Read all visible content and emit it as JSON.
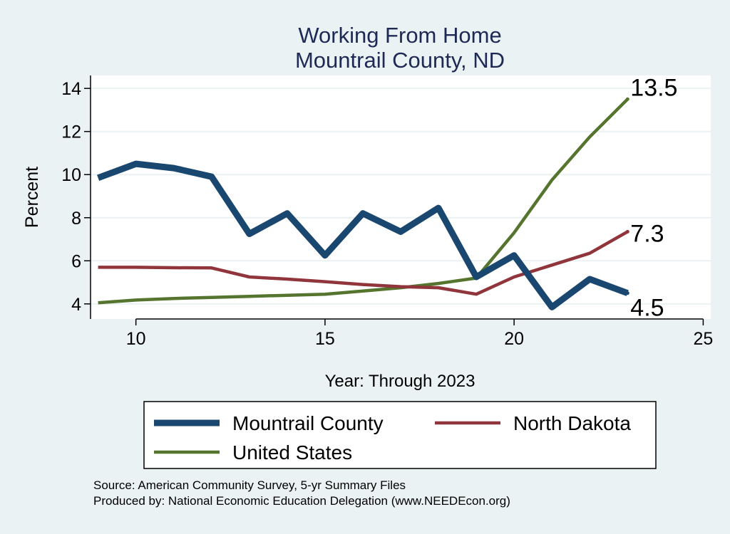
{
  "chart_data": {
    "type": "line",
    "title": "Working From Home",
    "subtitle": "Mountrail County, ND",
    "xlabel": "Year: Through 2023",
    "ylabel": "Percent",
    "xlim": [
      8.8,
      25.2
    ],
    "ylim": [
      3.3,
      14.6
    ],
    "xticks": [
      10,
      15,
      20,
      25
    ],
    "yticks": [
      4,
      6,
      8,
      10,
      12,
      14
    ],
    "grid": true,
    "legend_position": "bottom",
    "series": [
      {
        "name": "Mountrail County",
        "color": "#1a476f",
        "width": "thick",
        "x": [
          9,
          10,
          11,
          12,
          13,
          14,
          15,
          16,
          17,
          18,
          19,
          20,
          21,
          22,
          23
        ],
        "values": [
          9.85,
          10.5,
          10.3,
          9.9,
          7.25,
          8.2,
          6.25,
          8.2,
          7.35,
          8.45,
          5.25,
          6.25,
          3.85,
          5.15,
          4.5
        ],
        "end_label": "4.5"
      },
      {
        "name": "North Dakota",
        "color": "#90353b",
        "width": "medium",
        "x": [
          9,
          10,
          11,
          12,
          13,
          14,
          15,
          16,
          17,
          18,
          19,
          20,
          21,
          22,
          23
        ],
        "values": [
          5.7,
          5.7,
          5.68,
          5.67,
          5.25,
          5.15,
          5.03,
          4.9,
          4.8,
          4.75,
          4.45,
          5.25,
          5.8,
          6.35,
          7.35
        ],
        "end_label": "7.3"
      },
      {
        "name": "United States",
        "color": "#55752f",
        "width": "medium",
        "x": [
          9,
          10,
          11,
          12,
          13,
          14,
          15,
          16,
          17,
          18,
          19,
          20,
          21,
          22,
          23
        ],
        "values": [
          4.05,
          4.18,
          4.25,
          4.3,
          4.35,
          4.4,
          4.45,
          4.6,
          4.75,
          4.95,
          5.2,
          7.3,
          9.75,
          11.75,
          13.5
        ],
        "end_label": "13.5"
      }
    ]
  },
  "notes": {
    "source": "Source: American Community Survey, 5-yr Summary Files",
    "produced_by": "Produced by: National Economic Education Delegation (www.NEEDEcon.org)"
  }
}
